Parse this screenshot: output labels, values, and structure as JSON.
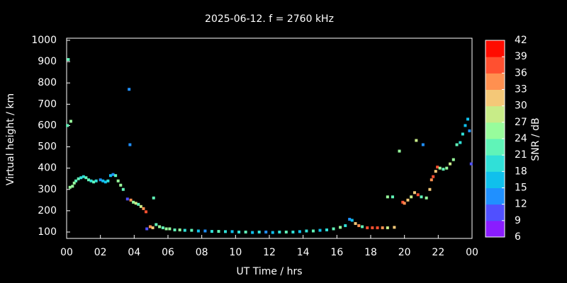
{
  "chart_data": {
    "type": "scatter",
    "title": "2025-06-12. f = 2760 kHz",
    "x_label": "UT Time / hrs",
    "y_label": "Virtual height / km",
    "xlim": [
      0,
      24
    ],
    "xticks": [
      {
        "value": 0,
        "label": "00"
      },
      {
        "value": 2,
        "label": "02"
      },
      {
        "value": 4,
        "label": "04"
      },
      {
        "value": 6,
        "label": "06"
      },
      {
        "value": 8,
        "label": "08"
      },
      10,
      12,
      14,
      16,
      18,
      20,
      22,
      {
        "value": 24,
        "label": "00"
      }
    ],
    "ylim": [
      70,
      1010
    ],
    "yticks": [
      100,
      200,
      300,
      400,
      500,
      600,
      700,
      800,
      900,
      1000
    ],
    "x": [
      0.1,
      0.05,
      0.25,
      0.2,
      0.35,
      0.45,
      0.55,
      0.7,
      0.85,
      1.0,
      1.15,
      1.3,
      1.45,
      1.6,
      1.75,
      2.0,
      2.15,
      2.3,
      2.45,
      2.6,
      2.75,
      2.9,
      3.05,
      3.2,
      3.35,
      3.6,
      3.7,
      3.75,
      3.8,
      3.95,
      4.1,
      4.25,
      4.4,
      4.55,
      4.7,
      4.75,
      4.95,
      5.1,
      5.15,
      5.3,
      5.5,
      5.7,
      5.9,
      6.1,
      6.4,
      6.7,
      7.0,
      7.4,
      7.8,
      8.2,
      8.6,
      9.0,
      9.4,
      9.8,
      10.2,
      10.6,
      11.0,
      11.4,
      11.8,
      12.2,
      12.6,
      13.0,
      13.4,
      13.8,
      14.2,
      14.6,
      15.0,
      15.4,
      15.8,
      16.2,
      16.5,
      16.75,
      16.9,
      17.1,
      17.3,
      17.5,
      17.8,
      18.1,
      18.4,
      18.7,
      19.0,
      19.4,
      19.7,
      19.0,
      19.3,
      19.9,
      20.0,
      20.2,
      20.4,
      20.6,
      20.8,
      20.7,
      21.1,
      21.0,
      21.3,
      21.5,
      21.6,
      21.7,
      21.85,
      21.95,
      22.1,
      22.3,
      22.5,
      22.7,
      22.9,
      23.1,
      23.3,
      23.45,
      23.6,
      23.75,
      23.85,
      23.95
    ],
    "values": [
      910,
      600,
      620,
      310,
      315,
      330,
      340,
      350,
      355,
      360,
      355,
      345,
      340,
      335,
      340,
      345,
      340,
      335,
      340,
      365,
      370,
      365,
      340,
      320,
      300,
      255,
      770,
      510,
      250,
      240,
      235,
      230,
      220,
      210,
      195,
      115,
      125,
      120,
      260,
      135,
      125,
      120,
      115,
      115,
      110,
      110,
      108,
      108,
      105,
      105,
      103,
      103,
      102,
      102,
      100,
      100,
      98,
      100,
      100,
      98,
      100,
      100,
      100,
      102,
      105,
      105,
      108,
      110,
      115,
      122,
      130,
      160,
      155,
      140,
      130,
      125,
      120,
      120,
      120,
      120,
      120,
      122,
      480,
      265,
      265,
      240,
      235,
      250,
      265,
      285,
      275,
      530,
      510,
      265,
      260,
      300,
      345,
      360,
      385,
      405,
      400,
      395,
      400,
      420,
      440,
      510,
      520,
      560,
      600,
      630,
      575,
      420
    ],
    "snr": [
      21,
      22,
      25,
      24,
      24,
      25,
      22,
      22,
      20,
      20,
      22,
      22,
      20,
      22,
      20,
      13,
      17,
      16,
      19,
      16,
      13,
      22,
      25,
      24,
      22,
      11,
      13,
      13,
      34,
      25,
      28,
      22,
      28,
      34,
      37,
      11,
      34,
      31,
      22,
      22,
      25,
      22,
      24,
      25,
      22,
      25,
      20,
      22,
      16,
      13,
      20,
      22,
      20,
      17,
      20,
      22,
      16,
      20,
      13,
      17,
      20,
      22,
      20,
      17,
      20,
      22,
      16,
      20,
      22,
      24,
      20,
      13,
      17,
      31,
      34,
      22,
      37,
      37,
      37,
      34,
      28,
      31,
      25,
      25,
      22,
      37,
      34,
      31,
      28,
      31,
      37,
      28,
      12,
      22,
      25,
      31,
      34,
      37,
      31,
      37,
      25,
      22,
      25,
      28,
      25,
      22,
      20,
      20,
      17,
      16,
      13,
      11
    ],
    "colorbar": {
      "label": "SNR / dB",
      "lim": [
        6,
        42
      ],
      "ticks": [
        6,
        9,
        12,
        15,
        18,
        21,
        24,
        27,
        30,
        33,
        36,
        39,
        42
      ],
      "colors": [
        "#8a1cff",
        "#5050ff",
        "#2090ff",
        "#10c0ec",
        "#30e0d8",
        "#60f4b8",
        "#98fc9c",
        "#c8ec88",
        "#f4c878",
        "#ff9050",
        "#ff5030",
        "#ff0c00"
      ]
    }
  }
}
